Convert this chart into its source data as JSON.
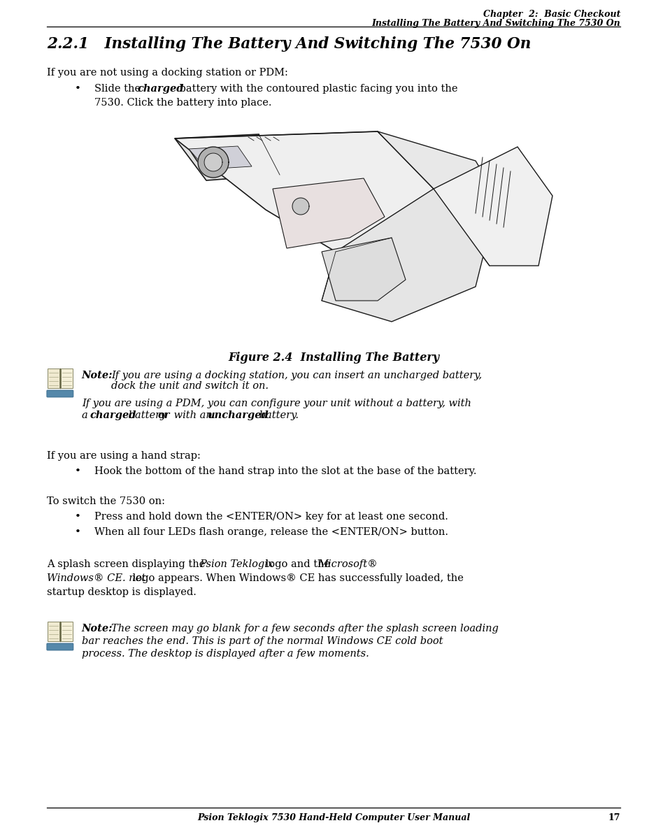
{
  "bg_color": "#ffffff",
  "header_line1": "Chapter  2:  Basic Checkout",
  "header_line2": "Installing The Battery And Switching The 7530 On",
  "section_title": "2.2.1   Installing The Battery And Switching The 7530 On",
  "intro_text": "If you are not using a docking station or PDM:",
  "figure_caption": "Figure 2.4  Installing The Battery",
  "note1_label": "Note:",
  "note1_line1": "If you are using a docking station, you can insert an uncharged battery,",
  "note1_line2": "dock the unit and switch it on.",
  "note1_line3": "If you are using a PDM, you can configure your unit without a battery, with",
  "note1_line4a": "a ",
  "note1_line4b": "charged",
  "note1_line4c": " battery ",
  "note1_line4d": "or",
  "note1_line4e": " with an ",
  "note1_line4f": "uncharged",
  "note1_line4g": " battery.",
  "hand_strap_text": "If you are using a hand strap:",
  "bullet2": "Hook the bottom of the hand strap into the slot at the base of the battery.",
  "switch_on_text": "To switch the 7530 on:",
  "bullet3": "Press and hold down the <ENTER/ON> key for at least one second.",
  "bullet4": "When all four LEDs flash orange, release the <ENTER/ON> button.",
  "splash_line1a": "A splash screen displaying the ",
  "splash_line1b": "Psion Teklogix",
  "splash_line1c": " logo and the ",
  "splash_line1d": "Microsoft®",
  "splash_line2a": "Windows® CE. net",
  "splash_line2b": " logo appears. When Windows® CE has successfully loaded, the",
  "splash_line3": "startup desktop is displayed.",
  "note2_label": "Note:",
  "note2_line1": "The screen may go blank for a few seconds after the splash screen loading",
  "note2_line2": "bar reaches the end. This is part of the normal Windows CE cold boot",
  "note2_line3": "process. The desktop is displayed after a few moments.",
  "footer_text": "Psion Teklogix 7530 Hand-Held Computer User Manual",
  "footer_page": "17",
  "lm": 0.072,
  "rm": 0.955,
  "indent_bullet": 0.115,
  "indent_text": 0.145,
  "text_color": "#000000"
}
